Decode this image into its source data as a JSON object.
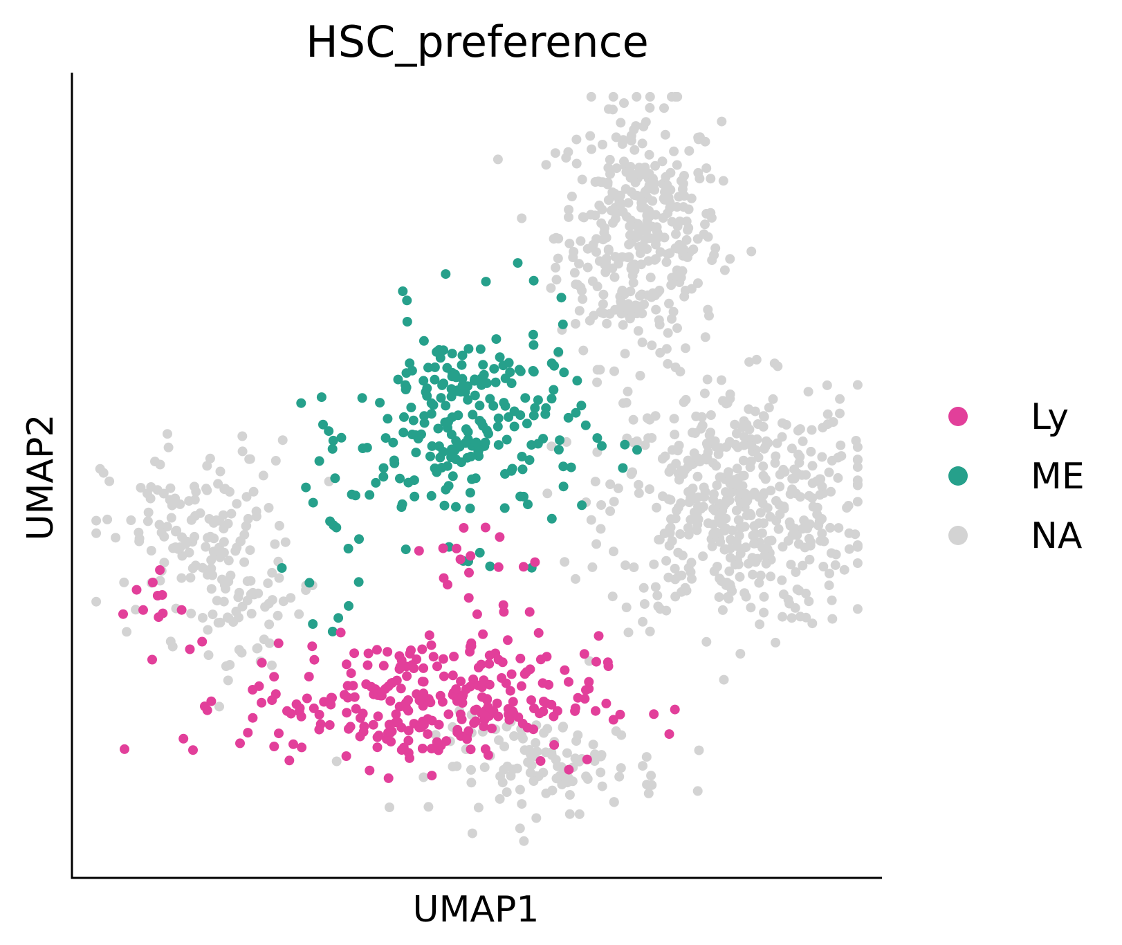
{
  "chart_data": {
    "type": "scatter",
    "title": "HSC_preference",
    "xlabel": "UMAP1",
    "ylabel": "UMAP2",
    "xlim": [
      0,
      100
    ],
    "ylim": [
      0,
      100
    ],
    "x_ticks": [],
    "y_ticks": [],
    "grid": false,
    "legend_position": "right",
    "series": [
      {
        "name": "NA",
        "color": "#d3d3d3",
        "clusters": [
          {
            "cx": 70,
            "cy": 80,
            "rx": 10,
            "ry": 16,
            "n": 360
          },
          {
            "cx": 82,
            "cy": 46,
            "rx": 16,
            "ry": 15,
            "n": 480
          },
          {
            "cx": 16,
            "cy": 42,
            "rx": 12,
            "ry": 12,
            "n": 150
          },
          {
            "cx": 59,
            "cy": 14,
            "rx": 14,
            "ry": 6,
            "n": 110
          },
          {
            "cx": 22,
            "cy": 33,
            "rx": 6,
            "ry": 8,
            "n": 40
          }
        ]
      },
      {
        "name": "ME",
        "color": "#26a08b",
        "clusters": [
          {
            "cx": 49,
            "cy": 56,
            "rx": 14,
            "ry": 14,
            "n": 230
          },
          {
            "cx": 32,
            "cy": 44,
            "rx": 5,
            "ry": 12,
            "n": 22
          }
        ]
      },
      {
        "name": "Ly",
        "color": "#e23f9a",
        "clusters": [
          {
            "cx": 43,
            "cy": 22,
            "rx": 22,
            "ry": 8,
            "n": 280
          },
          {
            "cx": 10,
            "cy": 34,
            "rx": 4,
            "ry": 4,
            "n": 10
          },
          {
            "cx": 52,
            "cy": 38,
            "rx": 7,
            "ry": 10,
            "n": 20
          }
        ]
      }
    ],
    "legend": [
      {
        "label": "Ly",
        "color": "#e23f9a"
      },
      {
        "label": "ME",
        "color": "#26a08b"
      },
      {
        "label": "NA",
        "color": "#d3d3d3"
      }
    ]
  }
}
